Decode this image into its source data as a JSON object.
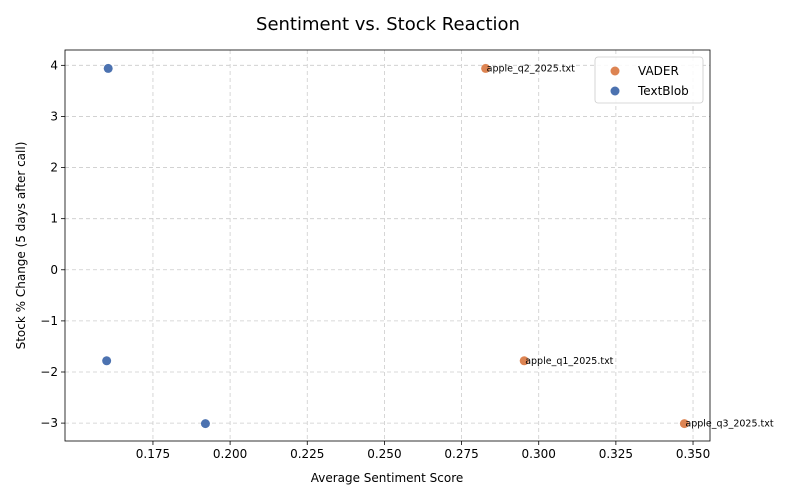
{
  "chart_data": {
    "type": "scatter",
    "title": "Sentiment vs. Stock Reaction",
    "xlabel": "Average Sentiment Score",
    "ylabel": "Stock % Change (5 days after call)",
    "xlim": [
      0.1465,
      0.3555
    ],
    "ylim": [
      -3.35,
      4.3
    ],
    "xticks": [
      0.175,
      0.2,
      0.225,
      0.25,
      0.275,
      0.3,
      0.325,
      0.35
    ],
    "xtick_labels": [
      "0.175",
      "0.200",
      "0.225",
      "0.250",
      "0.275",
      "0.300",
      "0.325",
      "0.350"
    ],
    "yticks": [
      -3,
      -2,
      -1,
      0,
      1,
      2,
      3,
      4
    ],
    "ytick_labels": [
      "−3",
      "−2",
      "−1",
      "0",
      "1",
      "2",
      "3",
      "4"
    ],
    "grid": true,
    "grid_style": "dashed",
    "legend_position": "top-right",
    "series": [
      {
        "name": "VADER",
        "color": "#dd8452",
        "points": [
          {
            "x": 0.2828,
            "y": 3.94,
            "label": "apple_q2_2025.txt"
          },
          {
            "x": 0.2953,
            "y": -1.78,
            "label": "apple_q1_2025.txt"
          },
          {
            "x": 0.3472,
            "y": -3.01,
            "label": "apple_q3_2025.txt"
          }
        ]
      },
      {
        "name": "TextBlob",
        "color": "#4c72b0",
        "points": [
          {
            "x": 0.1605,
            "y": 3.94
          },
          {
            "x": 0.16,
            "y": -1.78
          },
          {
            "x": 0.192,
            "y": -3.01
          }
        ]
      }
    ]
  }
}
